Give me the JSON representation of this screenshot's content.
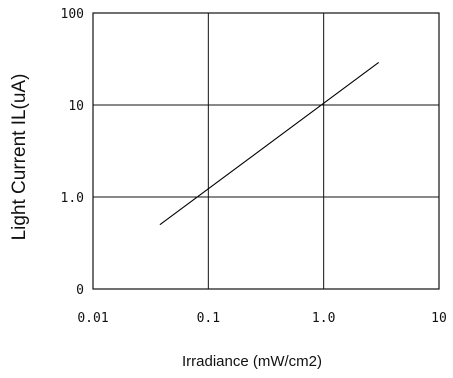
{
  "chart_data": {
    "type": "line",
    "title": "",
    "xlabel": "Irradiance (mW/cm2)",
    "ylabel": "Light Current IL(uA)",
    "x_scale": "log",
    "y_scale": "log",
    "xlim": [
      0.01,
      10
    ],
    "ylim": [
      0.1,
      100
    ],
    "grid": true,
    "x_ticks": [
      {
        "value": 0.01,
        "label": "0.01"
      },
      {
        "value": 0.1,
        "label": "0.1"
      },
      {
        "value": 1,
        "label": "1.0"
      },
      {
        "value": 10,
        "label": "10"
      }
    ],
    "y_ticks": [
      {
        "value": 0.1,
        "label": "0"
      },
      {
        "value": 1,
        "label": "1.0"
      },
      {
        "value": 10,
        "label": "10"
      },
      {
        "value": 100,
        "label": "100"
      }
    ],
    "series": [
      {
        "color": "#000000",
        "x": [
          0.038,
          3.0
        ],
        "y": [
          0.5,
          29
        ]
      }
    ]
  }
}
